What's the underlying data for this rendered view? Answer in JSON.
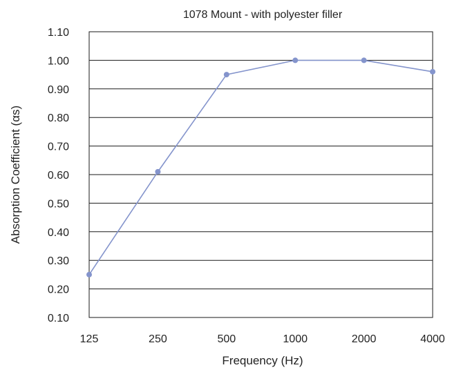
{
  "chart_data": {
    "type": "line",
    "title": "1078 Mount - with polyester filler",
    "xlabel": "Frequency (Hz)",
    "ylabel": "Absorption Coefficient (αs)",
    "categories": [
      "125",
      "250",
      "500",
      "1000",
      "2000",
      "4000"
    ],
    "series": [
      {
        "values": [
          0.25,
          0.61,
          0.95,
          1.0,
          1.0,
          0.96
        ]
      }
    ],
    "ylim": [
      0.1,
      1.1
    ],
    "yticks": [
      "0.10",
      "0.20",
      "0.30",
      "0.40",
      "0.50",
      "0.60",
      "0.70",
      "0.80",
      "0.90",
      "1.00",
      "1.10"
    ],
    "grid": true,
    "legend": "none",
    "colors": {
      "series": "#8494cc",
      "grid": "#1a1a1a",
      "text": "#222222"
    }
  }
}
